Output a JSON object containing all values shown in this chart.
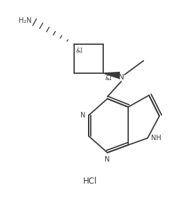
{
  "background_color": "#ffffff",
  "figure_size": [
    2.8,
    2.94
  ],
  "dpi": 100,
  "line_color": "#3a3a3a",
  "line_width": 1.3,
  "font_size_labels": 7.0,
  "font_size_hcl": 8.5,
  "text_color": "#3a3a3a",
  "hcl_text": "HCl",
  "stereo_label": "&1",
  "nh2_label": "H₂N",
  "n_label": "N",
  "nh_label": "NH"
}
